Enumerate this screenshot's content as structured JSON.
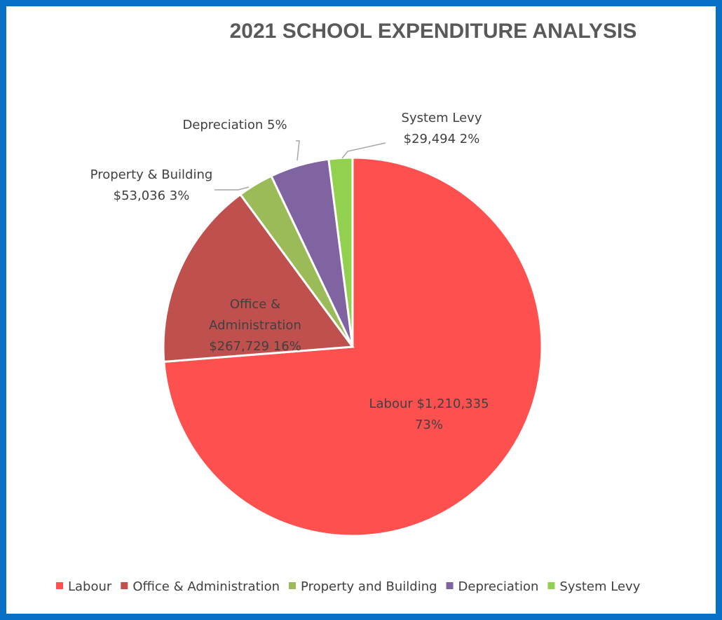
{
  "chart_data": {
    "type": "pie",
    "title": "2021 SCHOOL EXPENDITURE ANALYSIS",
    "slices": [
      {
        "name": "Labour",
        "value": 1210335,
        "percent": 73,
        "color": "#FF5050",
        "label": [
          "Labour $1,210,335",
          "73%"
        ]
      },
      {
        "name": "Office & Administration",
        "value": 267729,
        "percent": 16,
        "color": "#C0504D",
        "label": [
          "Office &",
          "Administration",
          "$267,729  16%"
        ]
      },
      {
        "name": "Property and Building",
        "value": 53036,
        "percent": 3,
        "color": "#9BBB59",
        "label": [
          "Property & Building",
          "$53,036 3%"
        ]
      },
      {
        "name": "Depreciation",
        "percent": 5,
        "color": "#8064A2",
        "label": [
          "Depreciation 5%"
        ]
      },
      {
        "name": "System Levy",
        "value": 29494,
        "percent": 2,
        "color": "#92D050",
        "label": [
          "System Levy",
          "$29,494  2%"
        ]
      }
    ],
    "legend_position": "bottom"
  }
}
